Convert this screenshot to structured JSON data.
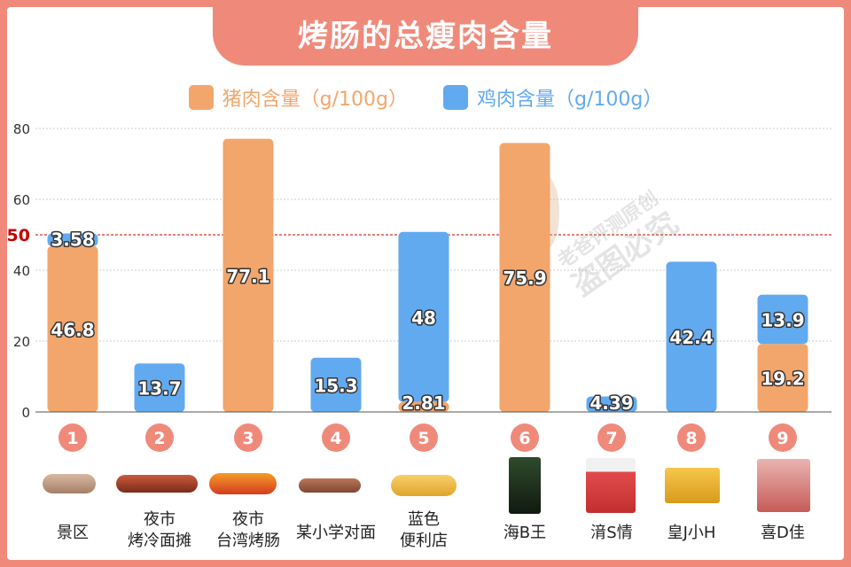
{
  "title": "烤肠的总瘦肉含量",
  "legend": {
    "pork": "猪肉含量（g/100g）",
    "chicken": "鸡肉含量（g/100g）"
  },
  "colors": {
    "pork": "#f2a66c",
    "chicken": "#62aaf0",
    "frame": "#ef8a7b",
    "circle": "#ef8a7b",
    "refline": "#c40000"
  },
  "reference": {
    "value": 50,
    "label": "50"
  },
  "watermark": [
    "老爸评测原创",
    "盗图必究"
  ],
  "chart_data": {
    "type": "bar",
    "stacked": true,
    "ylim": [
      0,
      80
    ],
    "yticks": [
      "0",
      "20",
      "40",
      "60",
      "80"
    ],
    "grid": true,
    "legend_position": "top",
    "categories": [
      "1",
      "2",
      "3",
      "4",
      "5",
      "6",
      "7",
      "8",
      "9"
    ],
    "category_labels": [
      [
        "景区"
      ],
      [
        "夜市",
        "烤冷面摊"
      ],
      [
        "夜市",
        "台湾烤肠"
      ],
      [
        "某小学对面"
      ],
      [
        "蓝色",
        "便利店"
      ],
      [
        "海B王"
      ],
      [
        "湇S情"
      ],
      [
        "皇J小H"
      ],
      [
        "喜D佳"
      ]
    ],
    "series": [
      {
        "name": "猪肉含量（g/100g）",
        "values": [
          46.8,
          0,
          77.1,
          0,
          2.81,
          75.9,
          0,
          0,
          19.2
        ],
        "labels": [
          "46.8",
          "",
          "77.1",
          "",
          "2.81",
          "75.9",
          "",
          "",
          "19.2"
        ]
      },
      {
        "name": "鸡肉含量（g/100g）",
        "values": [
          3.58,
          13.7,
          0,
          15.3,
          48,
          0,
          4.39,
          42.4,
          13.9
        ],
        "labels": [
          "3.58",
          "13.7",
          "",
          "15.3",
          "48",
          "",
          "4.39",
          "42.4",
          "13.9"
        ]
      }
    ]
  }
}
